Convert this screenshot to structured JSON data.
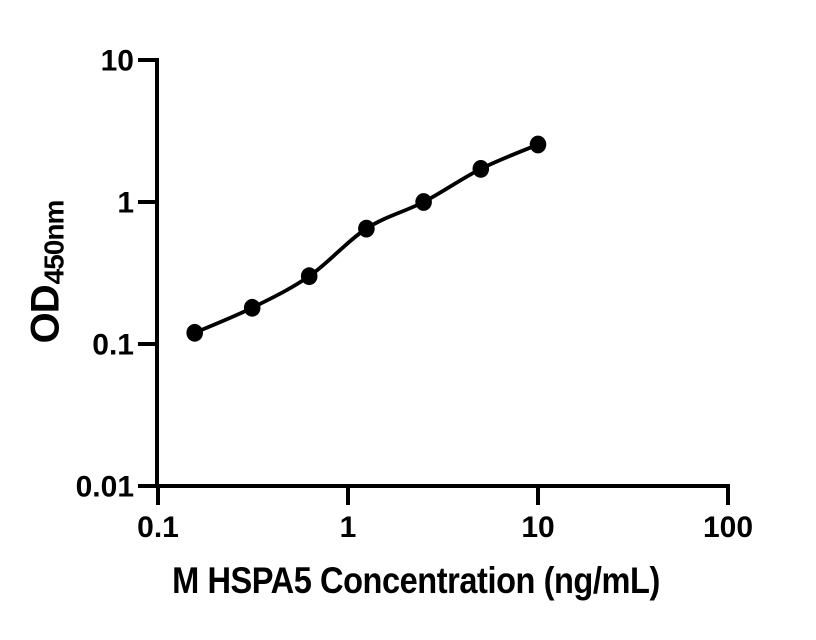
{
  "figure": {
    "background_color": "#ffffff",
    "ink_color": "#000000"
  },
  "chart_data": {
    "type": "scatter",
    "title": "",
    "xlabel": "M HSPA5 Concentration (ng/mL)",
    "ylabel_main": "OD",
    "ylabel_sub": "450nm",
    "x_scale": "log",
    "y_scale": "log",
    "xlim": [
      0.1,
      100
    ],
    "ylim": [
      0.01,
      10
    ],
    "grid": false,
    "legend": null,
    "x_ticks": [
      {
        "value": 0.1,
        "label": "0.1"
      },
      {
        "value": 1,
        "label": "1"
      },
      {
        "value": 10,
        "label": "10"
      },
      {
        "value": 100,
        "label": "100"
      }
    ],
    "y_ticks": [
      {
        "value": 0.01,
        "label": "0.01"
      },
      {
        "value": 0.1,
        "label": "0.1"
      },
      {
        "value": 1,
        "label": "1"
      },
      {
        "value": 10,
        "label": "10"
      }
    ],
    "series": [
      {
        "name": "standard-curve",
        "marker": "filled-circle",
        "marker_color": "#000000",
        "line_color": "#000000",
        "points": [
          {
            "x": 0.156,
            "y": 0.12
          },
          {
            "x": 0.313,
            "y": 0.18
          },
          {
            "x": 0.625,
            "y": 0.3
          },
          {
            "x": 1.25,
            "y": 0.65
          },
          {
            "x": 2.5,
            "y": 1.0
          },
          {
            "x": 5,
            "y": 1.71
          },
          {
            "x": 10,
            "y": 2.54
          }
        ]
      }
    ]
  }
}
